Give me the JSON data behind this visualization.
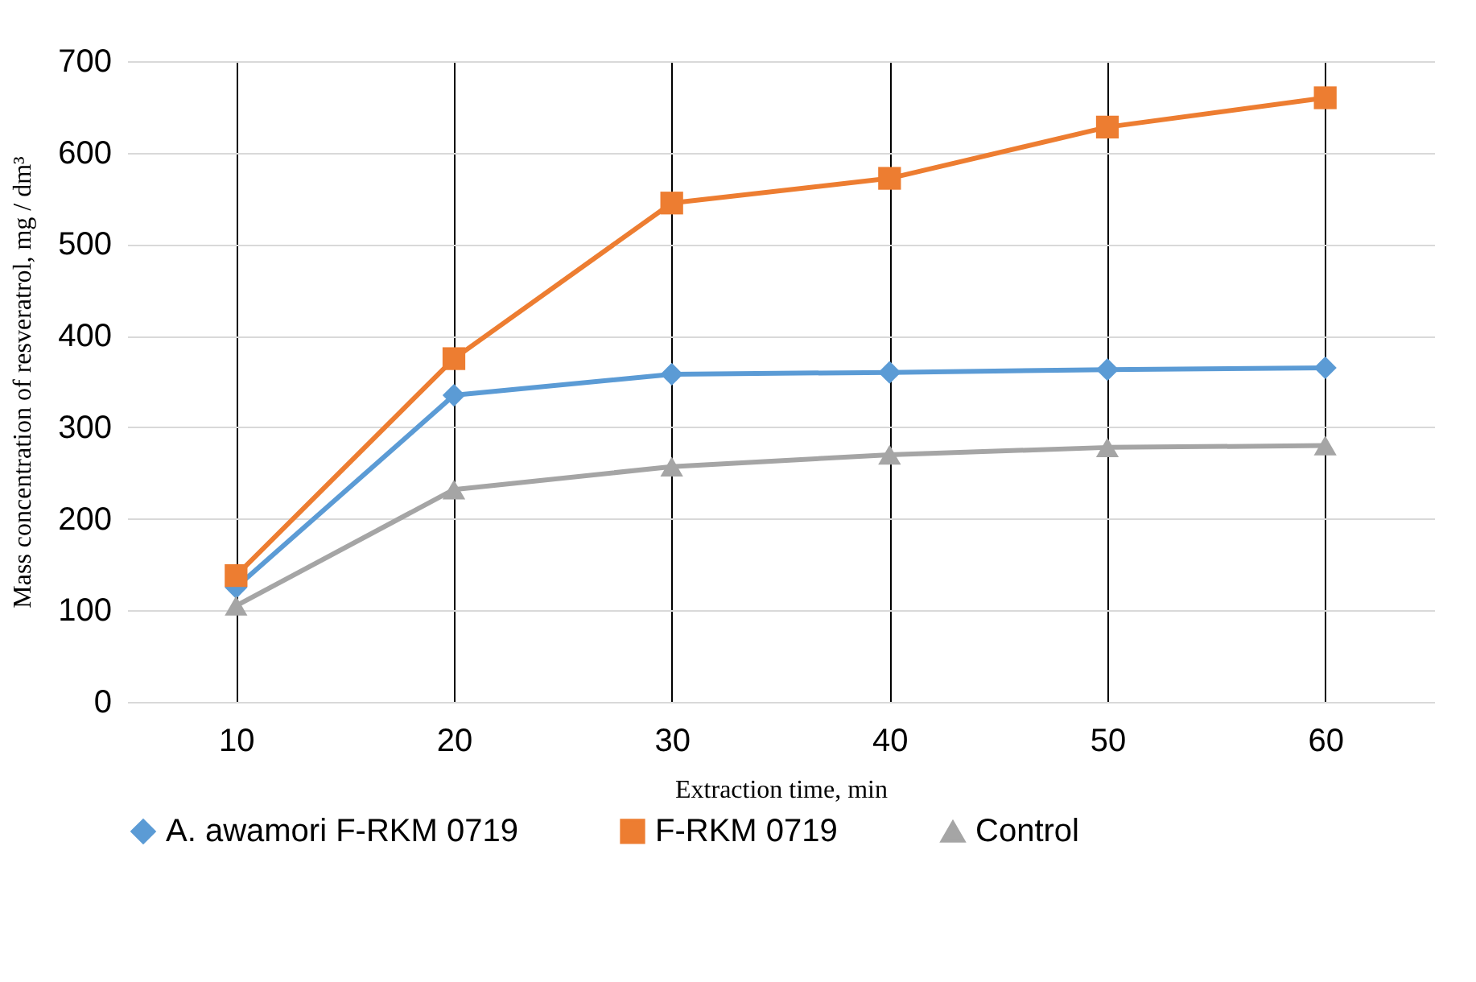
{
  "chart_data": {
    "type": "line",
    "xlabel": "Extraction time, min",
    "ylabel": "Mass concentration of resveratrol, mg / dm³",
    "categories": [
      "10",
      "20",
      "30",
      "40",
      "50",
      "60"
    ],
    "series": [
      {
        "name": "A. awamori F-RKM 0719",
        "color": "#5b9bd5",
        "marker": "diamond",
        "values": [
          125,
          335,
          358,
          360,
          363,
          365
        ]
      },
      {
        "name": "F-RKM 0719",
        "color": "#ed7d31",
        "marker": "square",
        "values": [
          138,
          375,
          545,
          572,
          628,
          660
        ]
      },
      {
        "name": "Control",
        "color": "#a5a5a5",
        "marker": "triangle",
        "values": [
          105,
          232,
          257,
          270,
          278,
          280
        ]
      }
    ],
    "ylim": [
      0,
      700
    ],
    "yticks": [
      0,
      100,
      200,
      300,
      400,
      500,
      600,
      700
    ],
    "grid": true,
    "legend": "bottom",
    "line_style": "solid"
  }
}
